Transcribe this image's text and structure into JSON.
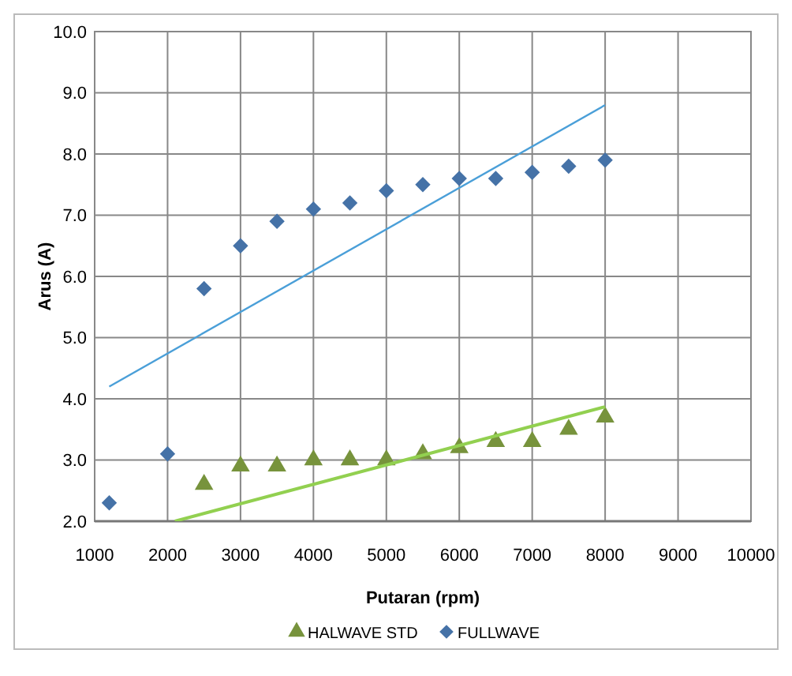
{
  "chart_data": {
    "type": "scatter",
    "xlabel": "Putaran (rpm)",
    "ylabel": "Arus (A)",
    "xlim": [
      1000,
      10000
    ],
    "xticks": [
      1000,
      2000,
      3000,
      4000,
      5000,
      6000,
      7000,
      8000,
      9000,
      10000
    ],
    "ylim": [
      2,
      10
    ],
    "yticks": [
      {
        "value": 2,
        "label": "2.0"
      },
      {
        "value": 3,
        "label": "3.0"
      },
      {
        "value": 4,
        "label": "4.0"
      },
      {
        "value": 5,
        "label": "5.0"
      },
      {
        "value": 6,
        "label": "6.0"
      },
      {
        "value": 7,
        "label": "7.0"
      },
      {
        "value": 8,
        "label": "8.0"
      },
      {
        "value": 9,
        "label": "9.0"
      },
      {
        "value": 10,
        "label": "10.0"
      }
    ],
    "grid": true,
    "legend": "bottom",
    "series": [
      {
        "name": "HALWAVE STD",
        "color": "#77933c",
        "marker": "triangle",
        "x": [
          2500,
          3000,
          3500,
          4000,
          4500,
          5000,
          5500,
          6000,
          6500,
          7000,
          7500,
          8000
        ],
        "values": [
          2.6,
          2.9,
          2.9,
          3.0,
          3.0,
          3.0,
          3.1,
          3.2,
          3.3,
          3.3,
          3.5,
          3.7
        ]
      },
      {
        "name": "FULLWAVE",
        "color": "#4572a7",
        "marker": "diamond",
        "x": [
          1200,
          2000,
          2500,
          3000,
          3500,
          4000,
          4500,
          5000,
          5500,
          6000,
          6500,
          7000,
          7500,
          8000
        ],
        "values": [
          2.3,
          3.1,
          5.8,
          6.5,
          6.9,
          7.1,
          7.2,
          7.4,
          7.5,
          7.6,
          7.6,
          7.7,
          7.8,
          7.9
        ]
      },
      {
        "type": "line",
        "color": "#4a9fd8",
        "marker": "none",
        "x": [
          1200,
          8000
        ],
        "values": [
          4.2,
          8.8
        ]
      },
      {
        "type": "line",
        "color": "#92d050",
        "marker": "none",
        "x": [
          2100,
          8000
        ],
        "values": [
          2.0,
          3.87
        ]
      }
    ]
  }
}
